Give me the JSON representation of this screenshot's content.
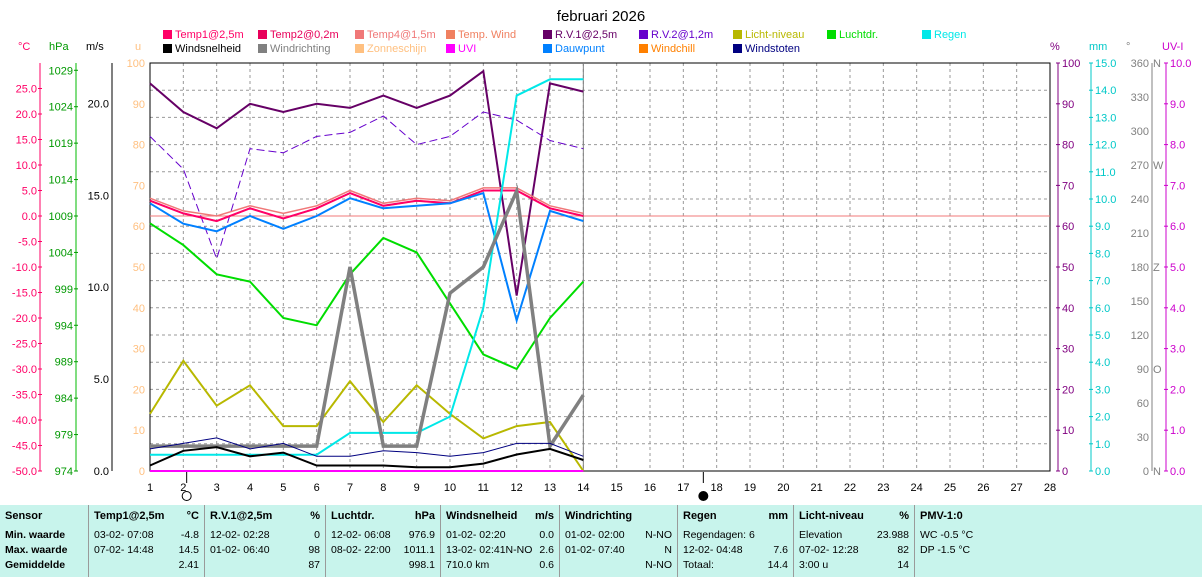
{
  "title": "februari 2026",
  "legend": [
    {
      "label": "Temp1@2,5m",
      "color": "#ff0066"
    },
    {
      "label": "Temp2@0,2m",
      "color": "#e8005a"
    },
    {
      "label": "Temp4@1,5m",
      "color": "#f07878"
    },
    {
      "label": "Temp. Wind",
      "color": "#f08060"
    },
    {
      "label": "R.V.1@2,5m",
      "color": "#660066"
    },
    {
      "label": "R.V.2@1,2m",
      "color": "#6600cc"
    },
    {
      "label": "Licht-niveau",
      "color": "#b8b800"
    },
    {
      "label": "Luchtdr.",
      "color": "#00dd00"
    },
    {
      "label": "Regen",
      "color": "#00e8e8"
    },
    {
      "label": "Windsnelheid",
      "color": "#000000"
    },
    {
      "label": "Windrichting",
      "color": "#808080"
    },
    {
      "label": "Zonneschijn",
      "color": "#ffc080"
    },
    {
      "label": "UVI",
      "color": "#ff00ff"
    },
    {
      "label": "Dauwpunt",
      "color": "#0080ff"
    },
    {
      "label": "Windchill",
      "color": "#ff8000"
    },
    {
      "label": "Windstoten",
      "color": "#000080"
    }
  ],
  "axes": {
    "units": {
      "temp": "°C",
      "hpa": "hPa",
      "ms": "m/s",
      "u": "u",
      "pct": "%",
      "mm": "mm",
      "deg": "°",
      "uv": "UV-I"
    },
    "temp": [
      "25.0",
      "20.0",
      "15.0",
      "10.0",
      "5.0",
      "0.0",
      "-5.0",
      "-10.0",
      "-15.0",
      "-20.0",
      "-25.0",
      "-30.0",
      "-35.0",
      "-40.0",
      "-45.0",
      "-50.0"
    ],
    "hpa": [
      "1029",
      "1024",
      "1019",
      "1014",
      "1009",
      "1004",
      "999",
      "994",
      "989",
      "984",
      "979",
      "974"
    ],
    "ms": [
      "20.0",
      "15.0",
      "10.0",
      "5.0",
      "0.0"
    ],
    "u": [
      "100",
      "90",
      "80",
      "70",
      "60",
      "50",
      "40",
      "30",
      "20",
      "10",
      "0"
    ],
    "pct": [
      "100",
      "90",
      "80",
      "70",
      "60",
      "50",
      "40",
      "30",
      "20",
      "10",
      "0"
    ],
    "mm": [
      "15.0",
      "14.0",
      "13.0",
      "12.0",
      "11.0",
      "10.0",
      "9.0",
      "8.0",
      "7.0",
      "6.0",
      "5.0",
      "4.0",
      "3.0",
      "2.0",
      "1.0",
      "0.0"
    ],
    "deg": [
      "360",
      "330",
      "300",
      "270",
      "240",
      "210",
      "180",
      "150",
      "120",
      "90",
      "60",
      "30",
      "0"
    ],
    "compass": [
      "N",
      "W",
      "Z",
      "O",
      "N"
    ],
    "uv": [
      "10.0",
      "9.0",
      "8.0",
      "7.0",
      "6.0",
      "5.0",
      "4.0",
      "3.0",
      "2.0",
      "1.0",
      "0.0"
    ],
    "days": [
      "1",
      "2",
      "3",
      "4",
      "5",
      "6",
      "7",
      "8",
      "9",
      "10",
      "11",
      "12",
      "13",
      "14",
      "15",
      "16",
      "17",
      "18",
      "19",
      "20",
      "21",
      "22",
      "23",
      "24",
      "25",
      "26",
      "27",
      "28"
    ]
  },
  "chart_data": {
    "type": "line",
    "title": "februari 2026",
    "x": [
      1,
      2,
      3,
      4,
      5,
      6,
      7,
      8,
      9,
      10,
      11,
      12,
      13,
      14
    ],
    "xlim": [
      1,
      28
    ],
    "series": [
      {
        "name": "Luchtdr.",
        "axis": "hPa",
        "color": "#00dd00",
        "width": 2,
        "values": [
          1008,
          1005,
          1001,
          1000,
          995,
          994,
          1001,
          1006,
          1004,
          997,
          990,
          988,
          995,
          1000
        ]
      },
      {
        "name": "Licht-niveau",
        "axis": "%",
        "color": "#b8b800",
        "width": 2,
        "values": [
          14,
          27,
          16,
          21,
          11,
          11,
          22,
          12,
          21,
          14,
          8,
          11,
          12,
          0
        ]
      },
      {
        "name": "R.V.1@2,5m",
        "axis": "%",
        "color": "#660066",
        "width": 2,
        "values": [
          95,
          88,
          84,
          90,
          88,
          90,
          89,
          92,
          89,
          92,
          98,
          43,
          95,
          93
        ]
      },
      {
        "name": "R.V.2@1,2m",
        "axis": "%",
        "color": "#6600cc",
        "width": 1,
        "dash": "8,4",
        "values": [
          82,
          74,
          52,
          79,
          78,
          82,
          83,
          87,
          80,
          82,
          88,
          86,
          81,
          79
        ]
      },
      {
        "name": "Temp4@1,5m",
        "axis": "°C",
        "color": "#f07878",
        "width": 1.5,
        "values": [
          3.5,
          1.0,
          0.0,
          2.0,
          0.5,
          2.0,
          5.0,
          2.5,
          3.5,
          3.0,
          5.5,
          5.5,
          2.0,
          0.5
        ]
      },
      {
        "name": "Temp2@0,2m",
        "axis": "°C",
        "color": "#e8005a",
        "width": 1.5,
        "values": [
          3.0,
          0.5,
          -1.0,
          1.5,
          -0.5,
          1.5,
          4.5,
          2.0,
          3.0,
          2.5,
          5.0,
          5.0,
          1.5,
          0.0
        ]
      },
      {
        "name": "Temp1@2,5m",
        "axis": "°C",
        "color": "#ff0066",
        "width": 2,
        "values": [
          3.0,
          0.5,
          -1.0,
          1.5,
          -0.5,
          1.5,
          4.5,
          2.0,
          3.0,
          2.5,
          5.0,
          5.0,
          1.5,
          0.0
        ]
      },
      {
        "name": "Dauwpunt",
        "axis": "°C",
        "color": "#0080ff",
        "width": 2,
        "values": [
          2.5,
          -1.5,
          -3.0,
          0.0,
          -2.5,
          0.0,
          3.5,
          1.5,
          2.0,
          2.5,
          4.5,
          -20.5,
          1.0,
          -1.0
        ]
      },
      {
        "name": "Regen",
        "axis": "mm",
        "color": "#00e8e8",
        "width": 2,
        "values": [
          0.6,
          0.6,
          0.6,
          0.6,
          0.6,
          0.6,
          1.4,
          1.4,
          1.4,
          2.0,
          6.0,
          13.8,
          14.4,
          14.4
        ]
      },
      {
        "name": "Windrichting",
        "axis": "°",
        "color": "#808080",
        "width": 3.5,
        "values": [
          22,
          22,
          22,
          22,
          22,
          22,
          180,
          22,
          22,
          157,
          180,
          247,
          22,
          67
        ]
      },
      {
        "name": "Windstoten",
        "axis": "m/s",
        "color": "#000080",
        "width": 1,
        "values": [
          1.2,
          1.5,
          1.8,
          1.2,
          1.5,
          0.8,
          0.8,
          1.1,
          1.0,
          0.8,
          1.0,
          1.5,
          1.5,
          0.8
        ]
      },
      {
        "name": "Windsnelheid",
        "axis": "m/s",
        "color": "#000000",
        "width": 2,
        "values": [
          0.3,
          1.1,
          1.3,
          0.8,
          1.0,
          0.3,
          0.3,
          0.3,
          0.2,
          0.2,
          0.4,
          0.9,
          1.2,
          0.6
        ]
      },
      {
        "name": "UVI",
        "axis": "UV-I",
        "color": "#ff00ff",
        "width": 2,
        "values": [
          0,
          0,
          0,
          0,
          0,
          0,
          0,
          0,
          0,
          0,
          0,
          0,
          0,
          0
        ]
      }
    ],
    "reference_line": {
      "axis": "°C",
      "value": 0,
      "color": "#f07878"
    },
    "moon_phases": [
      {
        "day": 2.1,
        "phase": "full"
      },
      {
        "day": 17.6,
        "phase": "new"
      }
    ],
    "marker_days": [
      2.1,
      17.6
    ]
  },
  "footer": {
    "sensor": {
      "header": "Sensor",
      "min": "Min. waarde",
      "max": "Max. waarde",
      "avg": "Gemiddelde"
    },
    "temp1": {
      "name": "Temp1@2,5m",
      "unit": "°C",
      "min_time": "03-02-  07:08",
      "min_val": "-4.8",
      "max_time": "07-02-  14:48",
      "max_val": "14.5",
      "avg": "2.41"
    },
    "rv1": {
      "name": "R.V.1@2,5m",
      "unit": "%",
      "min_time": "12-02-  02:28",
      "min_val": "0",
      "max_time": "01-02-  06:40",
      "max_val": "98",
      "avg": "87"
    },
    "press": {
      "name": "Luchtdr.",
      "unit": "hPa",
      "min_time": "12-02-  06:08",
      "min_val": "976.9",
      "max_time": "08-02-  22:00",
      "max_val": "1011.1",
      "avg": "998.1"
    },
    "windspeed": {
      "name": "Windsnelheid",
      "unit": "m/s",
      "min_time": "01-02-  02:20",
      "min_val": "0.0",
      "max_time": "13-02-  02:41N-NO",
      "max_val": "2.6",
      "avg_left": "710.0 km",
      "avg": "0.6"
    },
    "winddir": {
      "name": "Windrichting",
      "min_time": "01-02-  02:00",
      "min_val": "N-NO",
      "max_time": "01-02-  07:40",
      "max_val": "N",
      "avg": "N-NO"
    },
    "rain": {
      "name": "Regen",
      "unit": "mm",
      "row1": "Regendagen: 6",
      "max_time": "12-02-  04:48",
      "max_val": "7.6",
      "total_label": "Totaal:",
      "total": "14.4"
    },
    "light": {
      "name": "Licht-niveau",
      "unit": "%",
      "row1_label": "Elevation",
      "row1_val": "23.988",
      "max_time": "07-02-  12:28",
      "max_val": "82",
      "row3_label": "3:00 u",
      "row3_val": "14"
    },
    "pmv": {
      "name": "PMV-1:0",
      "wc": "WC -0.5 °C",
      "dp": "DP -1.5 °C"
    }
  }
}
